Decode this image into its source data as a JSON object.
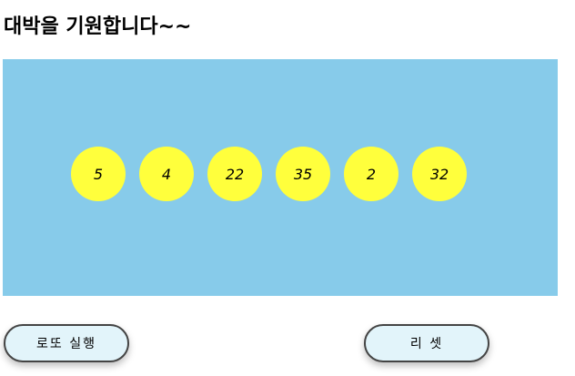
{
  "header": {
    "title": "대박을 기원합니다~~"
  },
  "board": {
    "background_color": "#87CBEA",
    "ball_color": "#FFFF3C",
    "numbers": [
      "5",
      "4",
      "22",
      "35",
      "2",
      "32"
    ]
  },
  "actions": {
    "run_label": "로또 실행",
    "reset_label": "리 셋",
    "button_background": "#E2F4FA"
  }
}
